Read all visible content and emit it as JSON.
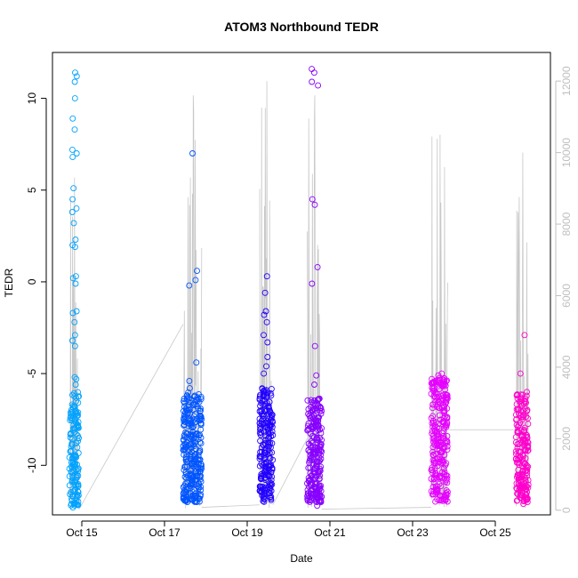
{
  "chart_data": {
    "type": "scatter",
    "title": "ATOM3 Northbound TEDR",
    "xlabel": "Date",
    "ylabel": "TEDR",
    "x_range_days": [
      "Oct 14 12:00",
      "Oct 26 00:00"
    ],
    "ylim": [
      -12.7,
      12.5
    ],
    "y2lim": [
      -130,
      12800
    ],
    "x_ticks": [
      {
        "label": "Oct 15",
        "day": 15
      },
      {
        "label": "Oct 17",
        "day": 17
      },
      {
        "label": "Oct 19",
        "day": 19
      },
      {
        "label": "Oct 21",
        "day": 21
      },
      {
        "label": "Oct 23",
        "day": 23
      },
      {
        "label": "Oct 25",
        "day": 25
      }
    ],
    "y_ticks": [
      "-10",
      "-5",
      "0",
      "5",
      "10"
    ],
    "y2_ticks": [
      "0",
      "2000",
      "4000",
      "6000",
      "8000",
      "10000",
      "12000"
    ],
    "series": [
      {
        "color": "#00a2ff",
        "day_start": 14.7,
        "day_end": 14.93,
        "core_y": [
          -12.2,
          -6.0
        ],
        "outliers_y": [
          11.4,
          11.2,
          10.9,
          10.0,
          8.9,
          8.3,
          7.2,
          7.0,
          6.8,
          5.1,
          4.5,
          4.0,
          3.8,
          3.2,
          2.3,
          2.0,
          1.9,
          0.3,
          0.2,
          -0.1,
          -1.6,
          -1.7,
          -2.2,
          -2.9,
          -3.2,
          -3.5,
          -5.2,
          -5.3,
          -5.6,
          -12.3
        ],
        "line_max": 9300
      },
      {
        "color": "#0055ff",
        "day_start": 17.45,
        "day_end": 17.9,
        "core_y": [
          -12.0,
          -6.0
        ],
        "outliers_y": [
          7.0,
          0.6,
          0.1,
          -0.2,
          -4.4,
          -5.4,
          -5.8
        ],
        "line_max": 11600
      },
      {
        "color": "#2200ff",
        "day_start": 19.3,
        "day_end": 19.62,
        "core_y": [
          -12.0,
          -5.8
        ],
        "outliers_y": [
          0.3,
          -0.6,
          -1.6,
          -1.8,
          -2.2,
          -2.9,
          -3.3,
          -4.1,
          -4.6,
          -5.0
        ],
        "line_max": 12000
      },
      {
        "color": "#8800ff",
        "day_start": 20.45,
        "day_end": 20.8,
        "core_y": [
          -12.0,
          -6.3
        ],
        "outliers_y": [
          11.6,
          11.4,
          10.9,
          10.7,
          4.5,
          4.2,
          0.8,
          -0.1,
          -3.5,
          -5.1,
          -5.6,
          -12.2
        ],
        "line_max": 11600
      },
      {
        "color": "#e600ff",
        "day_start": 23.45,
        "day_end": 23.85,
        "core_y": [
          -12.0,
          -5.2
        ],
        "outliers_y": [
          -5.0,
          -5.1
        ],
        "line_max": 10500
      },
      {
        "color": "#ff00cc",
        "day_start": 25.5,
        "day_end": 25.8,
        "core_y": [
          -12.0,
          -6.0
        ],
        "outliers_y": [
          -2.9,
          -5.0,
          -12.1
        ],
        "line_max": 10000
      }
    ]
  }
}
